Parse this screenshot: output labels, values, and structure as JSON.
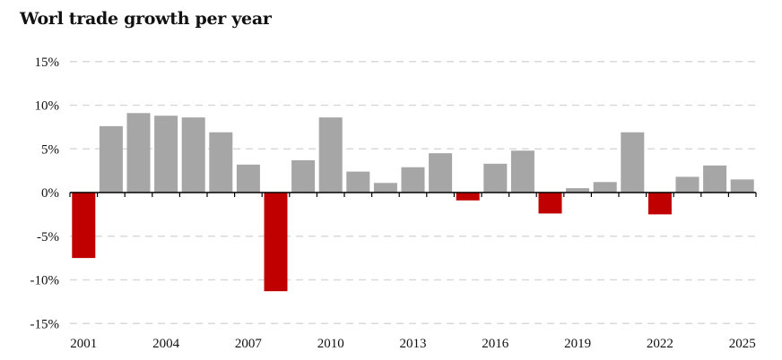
{
  "chart_data": {
    "type": "bar",
    "title": "Worl trade growth per year",
    "xlabel": "",
    "ylabel": "",
    "categories": [
      "2001",
      "2002",
      "2003",
      "2004",
      "2005",
      "2006",
      "2007",
      "2008",
      "2009",
      "2010",
      "2011",
      "2012",
      "2013",
      "2014",
      "2015",
      "2016",
      "2017",
      "2018",
      "2019",
      "2020",
      "2021",
      "2022",
      "2023",
      "2024",
      "2025"
    ],
    "values": [
      -7.5,
      7.6,
      9.1,
      8.8,
      8.6,
      6.9,
      3.2,
      -11.3,
      3.7,
      8.6,
      2.4,
      1.1,
      2.9,
      4.5,
      -0.9,
      3.3,
      4.8,
      -2.4,
      0.5,
      1.2,
      6.9,
      -2.5,
      1.8,
      3.1,
      1.5
    ],
    "x_tick_labels": [
      "2001",
      "2004",
      "2007",
      "2010",
      "2013",
      "2016",
      "2019",
      "2022",
      "2025"
    ],
    "y_ticks": [
      15,
      10,
      5,
      0,
      -5,
      -10,
      -15
    ],
    "y_tick_labels": [
      "15%",
      "10%",
      "5%",
      "0%",
      "-5%",
      "-10%",
      "-15%"
    ],
    "ylim": [
      -15,
      15
    ],
    "grid": true,
    "legend": "none",
    "colors": {
      "positive": "#a6a6a6",
      "negative": "#c00000",
      "grid": "#d9d9d9",
      "axis": "#000000"
    }
  }
}
